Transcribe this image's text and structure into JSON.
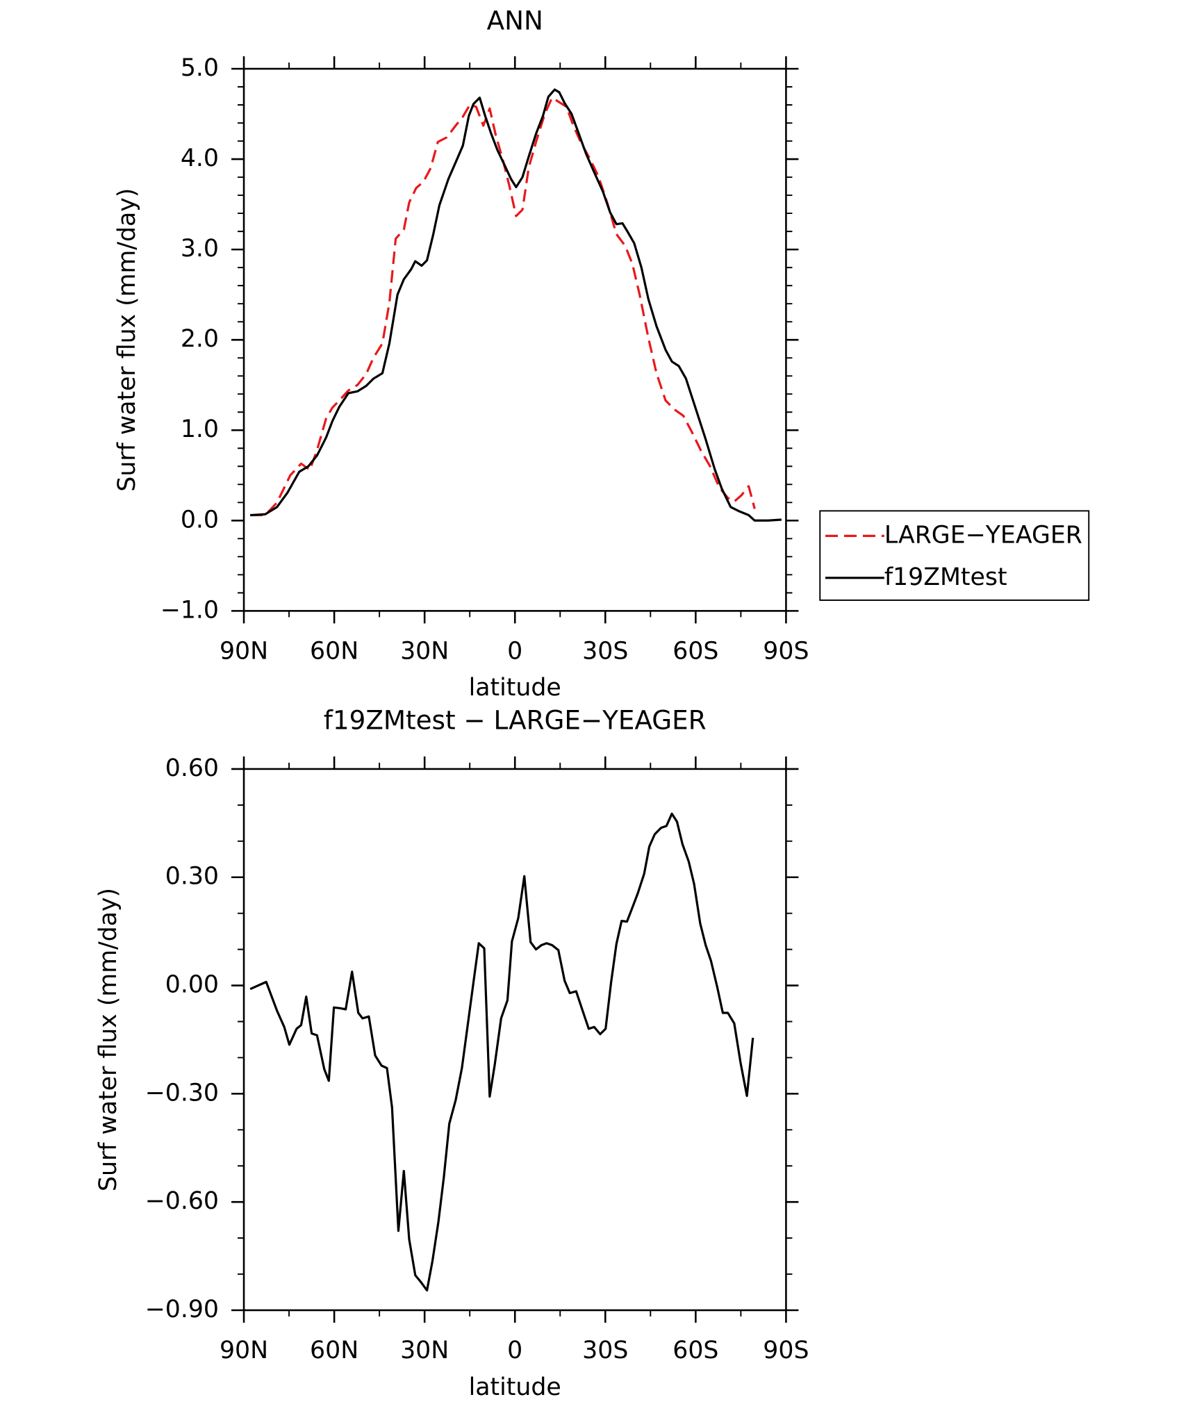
{
  "chart_data": [
    {
      "type": "line",
      "title": "ANN",
      "xlabel": "latitude",
      "ylabel": "Surf water flux (mm/day)",
      "xlim": [
        90,
        -90
      ],
      "xticks": [
        {
          "value": 90,
          "label": "90N"
        },
        {
          "value": 60,
          "label": "60N"
        },
        {
          "value": 30,
          "label": "30N"
        },
        0,
        {
          "value": -30,
          "label": "30S"
        },
        {
          "value": -60,
          "label": "60S"
        },
        {
          "value": -90,
          "label": "90S"
        }
      ],
      "xminorticks": [
        75,
        45,
        15,
        -15,
        -45,
        -75
      ],
      "ylim": [
        -1.0,
        5.0
      ],
      "yticks": [
        {
          "value": 5,
          "label": "5.0"
        },
        {
          "value": 4,
          "label": "4.0"
        },
        {
          "value": 3,
          "label": "3.0"
        },
        {
          "value": 2,
          "label": "2.0"
        },
        {
          "value": 1,
          "label": "1.0"
        },
        {
          "value": 0,
          "label": "0.0"
        },
        {
          "value": -1,
          "label": "−1.0"
        }
      ],
      "yminorticks": [
        4.8,
        4.6,
        4.4,
        4.2,
        3.8,
        3.6,
        3.4,
        3.2,
        2.8,
        2.6,
        2.4,
        2.2,
        1.8,
        1.6,
        1.4,
        1.2,
        0.8,
        0.6,
        0.4,
        0.2,
        -0.2,
        -0.4,
        -0.6,
        -0.8
      ],
      "legend": "right",
      "series": [
        {
          "name": "LARGE−YEAGER",
          "color": "#e8191c",
          "dash": true,
          "x": [
            87.9,
            82.9,
            79.0,
            74.6,
            71.0,
            68.1,
            65.7,
            62.7,
            60.6,
            58.3,
            55.3,
            52.3,
            49.4,
            47.0,
            44.0,
            41.7,
            39.6,
            36.9,
            35.1,
            32.8,
            30.4,
            28.0,
            25.6,
            22.7,
            19.7,
            17.3,
            15.0,
            12.9,
            10.5,
            8.4,
            6.4,
            4.0,
            1.9,
            -0.4,
            -2.5,
            -4.6,
            -7.0,
            -9.9,
            -12.3,
            -14.7,
            -17.1,
            -19.4,
            -21.8,
            -24.8,
            -27.7,
            -30.7,
            -33.7,
            -36.6,
            -39.0,
            -41.4,
            -44.3,
            -47.0,
            -50.0,
            -52.9,
            -55.9,
            -58.9,
            -61.8,
            -64.8,
            -67.8,
            -70.7,
            -72.8,
            -75.2,
            -77.6,
            -79.6
          ],
          "values": [
            0.06,
            0.06,
            0.2,
            0.5,
            0.63,
            0.56,
            0.78,
            1.13,
            1.25,
            1.33,
            1.44,
            1.5,
            1.62,
            1.8,
            1.96,
            2.41,
            3.12,
            3.22,
            3.52,
            3.68,
            3.75,
            3.9,
            4.19,
            4.24,
            4.37,
            4.47,
            4.6,
            4.58,
            4.37,
            4.56,
            4.27,
            3.99,
            3.71,
            3.37,
            3.44,
            3.91,
            4.19,
            4.5,
            4.68,
            4.63,
            4.58,
            4.37,
            4.19,
            4.01,
            3.81,
            3.51,
            3.17,
            3.04,
            2.84,
            2.5,
            2.02,
            1.63,
            1.33,
            1.23,
            1.16,
            0.97,
            0.77,
            0.6,
            0.37,
            0.25,
            0.21,
            0.28,
            0.38,
            0.13
          ]
        },
        {
          "name": "f19ZMtest",
          "color": "#000000",
          "dash": false,
          "x": [
            87.9,
            82.9,
            79.0,
            75.5,
            71.6,
            68.6,
            65.7,
            62.7,
            60.6,
            58.3,
            55.3,
            52.3,
            49.4,
            47.0,
            44.0,
            41.7,
            39.0,
            36.9,
            34.5,
            33.1,
            31.0,
            29.2,
            27.1,
            25.1,
            22.1,
            19.1,
            17.3,
            15.3,
            13.8,
            11.7,
            9.9,
            7.9,
            5.8,
            3.4,
            1.3,
            -0.4,
            -2.5,
            -4.6,
            -7.0,
            -9.3,
            -11.1,
            -13.2,
            -14.7,
            -16.5,
            -18.8,
            -21.2,
            -23.6,
            -26.5,
            -29.2,
            -31.6,
            -33.7,
            -35.7,
            -37.5,
            -39.6,
            -42.0,
            -44.3,
            -47.0,
            -50.0,
            -52.1,
            -54.4,
            -56.8,
            -59.8,
            -63.3,
            -66.3,
            -68.7,
            -71.6,
            -74.6,
            -77.6,
            -79.6,
            -84.1,
            -88.5
          ],
          "values": [
            0.06,
            0.07,
            0.15,
            0.31,
            0.54,
            0.6,
            0.72,
            0.92,
            1.1,
            1.26,
            1.41,
            1.43,
            1.49,
            1.57,
            1.63,
            1.96,
            2.5,
            2.67,
            2.78,
            2.87,
            2.82,
            2.88,
            3.17,
            3.49,
            3.78,
            4.01,
            4.15,
            4.48,
            4.61,
            4.68,
            4.48,
            4.28,
            4.1,
            3.93,
            3.78,
            3.69,
            3.8,
            4.03,
            4.28,
            4.48,
            4.69,
            4.77,
            4.74,
            4.62,
            4.5,
            4.28,
            4.06,
            3.84,
            3.64,
            3.41,
            3.28,
            3.29,
            3.19,
            3.07,
            2.8,
            2.45,
            2.15,
            1.89,
            1.76,
            1.71,
            1.57,
            1.26,
            0.9,
            0.57,
            0.35,
            0.15,
            0.1,
            0.06,
            0.0,
            0.0,
            0.01
          ]
        }
      ]
    },
    {
      "type": "line",
      "title": "f19ZMtest − LARGE−YEAGER",
      "xlabel": "latitude",
      "ylabel": "Surf water flux (mm/day)",
      "xlim": [
        90,
        -90
      ],
      "xticks": [
        {
          "value": 90,
          "label": "90N"
        },
        {
          "value": 60,
          "label": "60N"
        },
        {
          "value": 30,
          "label": "30N"
        },
        0,
        {
          "value": -30,
          "label": "30S"
        },
        {
          "value": -60,
          "label": "60S"
        },
        {
          "value": -90,
          "label": "90S"
        }
      ],
      "xminorticks": [
        75,
        45,
        15,
        -15,
        -45,
        -75
      ],
      "ylim": [
        -0.9,
        0.6
      ],
      "yticks": [
        {
          "value": 0.6,
          "label": "0.60"
        },
        {
          "value": 0.3,
          "label": "0.30"
        },
        {
          "value": 0,
          "label": "0.00"
        },
        {
          "value": -0.3,
          "label": "−0.30"
        },
        {
          "value": -0.6,
          "label": "−0.60"
        },
        {
          "value": -0.9,
          "label": "−0.90"
        }
      ],
      "yminorticks": [
        0.5,
        0.4,
        0.2,
        0.1,
        -0.1,
        -0.2,
        -0.4,
        -0.5,
        -0.7,
        -0.8
      ],
      "series": [
        {
          "color": "#000000",
          "dash": false,
          "x": [
            87.9,
            82.6,
            79.0,
            76.6,
            74.9,
            72.5,
            71.0,
            69.3,
            67.5,
            65.7,
            63.3,
            61.8,
            60.1,
            58.0,
            56.2,
            54.1,
            52.0,
            50.6,
            48.5,
            46.4,
            44.3,
            42.5,
            40.8,
            38.7,
            36.9,
            35.1,
            33.1,
            31.3,
            29.2,
            27.4,
            25.4,
            23.6,
            21.8,
            19.7,
            17.6,
            15.9,
            13.8,
            12.0,
            10.2,
            8.4,
            6.7,
            4.6,
            2.5,
            1.0,
            -1.1,
            -3.1,
            -5.2,
            -7.0,
            -8.8,
            -10.5,
            -12.3,
            -14.4,
            -16.5,
            -18.2,
            -20.3,
            -22.4,
            -24.5,
            -26.3,
            -28.3,
            -30.1,
            -31.9,
            -33.7,
            -35.4,
            -37.2,
            -39.0,
            -40.8,
            -42.9,
            -44.6,
            -46.4,
            -48.5,
            -50.3,
            -52.1,
            -53.8,
            -55.6,
            -57.7,
            -59.5,
            -61.5,
            -63.3,
            -65.1,
            -67.2,
            -69.0,
            -70.7,
            -72.8,
            -74.9,
            -77.0,
            -79.0
          ],
          "values": [
            -0.01,
            0.01,
            -0.07,
            -0.115,
            -0.164,
            -0.12,
            -0.11,
            -0.031,
            -0.133,
            -0.138,
            -0.232,
            -0.264,
            -0.061,
            -0.063,
            -0.066,
            0.038,
            -0.076,
            -0.091,
            -0.086,
            -0.194,
            -0.222,
            -0.229,
            -0.338,
            -0.68,
            -0.514,
            -0.704,
            -0.803,
            -0.821,
            -0.845,
            -0.764,
            -0.655,
            -0.531,
            -0.383,
            -0.318,
            -0.229,
            -0.123,
            0.008,
            0.117,
            0.103,
            -0.308,
            -0.219,
            -0.091,
            -0.041,
            0.122,
            0.187,
            0.303,
            0.12,
            0.1,
            0.112,
            0.117,
            0.112,
            0.098,
            0.013,
            -0.021,
            -0.016,
            -0.068,
            -0.12,
            -0.115,
            -0.135,
            -0.12,
            0.008,
            0.115,
            0.179,
            0.177,
            0.216,
            0.256,
            0.31,
            0.385,
            0.419,
            0.437,
            0.442,
            0.476,
            0.454,
            0.392,
            0.343,
            0.281,
            0.172,
            0.112,
            0.068,
            -0.006,
            -0.076,
            -0.076,
            -0.105,
            -0.214,
            -0.306,
            -0.145
          ]
        }
      ]
    }
  ]
}
